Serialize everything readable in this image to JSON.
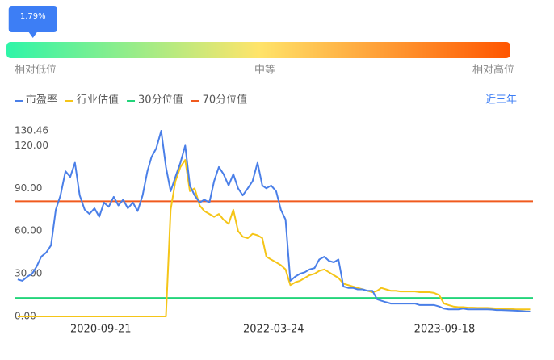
{
  "percentile_bar": {
    "marker": {
      "value": 1.79,
      "label": "1.79%"
    },
    "low_label": "相对低位",
    "mid_label": "中等",
    "high_label": "相对高位"
  },
  "range_selector": "近三年",
  "chart_data": {
    "type": "line",
    "x": [
      "2020-01-01",
      "2020-01-16",
      "2020-02-01",
      "2020-02-16",
      "2020-03-01",
      "2020-03-16",
      "2020-04-01",
      "2020-04-16",
      "2020-05-01",
      "2020-05-16",
      "2020-06-01",
      "2020-06-16",
      "2020-07-01",
      "2020-07-16",
      "2020-08-01",
      "2020-08-16",
      "2020-09-01",
      "2020-09-16",
      "2020-10-01",
      "2020-10-16",
      "2020-11-01",
      "2020-11-16",
      "2020-12-01",
      "2020-12-16",
      "2021-01-01",
      "2021-01-16",
      "2021-02-01",
      "2021-02-16",
      "2021-03-01",
      "2021-03-16",
      "2021-04-01",
      "2021-04-16",
      "2021-05-01",
      "2021-05-16",
      "2021-06-01",
      "2021-06-16",
      "2021-07-01",
      "2021-07-16",
      "2021-08-01",
      "2021-08-16",
      "2021-09-01",
      "2021-09-16",
      "2021-10-01",
      "2021-10-16",
      "2021-11-01",
      "2021-11-16",
      "2021-12-01",
      "2021-12-16",
      "2022-01-01",
      "2022-01-16",
      "2022-02-01",
      "2022-02-16",
      "2022-03-01",
      "2022-03-16",
      "2022-04-01",
      "2022-04-16",
      "2022-05-01",
      "2022-05-16",
      "2022-06-01",
      "2022-06-16",
      "2022-07-01",
      "2022-07-16",
      "2022-08-01",
      "2022-08-16",
      "2022-09-01",
      "2022-09-16",
      "2022-10-01",
      "2022-10-16",
      "2022-11-01",
      "2022-11-16",
      "2022-12-01",
      "2022-12-16",
      "2023-01-01",
      "2023-01-16",
      "2023-02-01",
      "2023-02-16",
      "2023-03-01",
      "2023-03-16",
      "2023-04-01",
      "2023-04-16",
      "2023-05-01",
      "2023-05-16",
      "2023-06-01",
      "2023-06-16",
      "2023-07-01",
      "2023-07-16",
      "2023-08-01",
      "2023-08-16",
      "2023-09-01",
      "2023-09-16",
      "2023-10-01",
      "2023-10-16",
      "2023-11-01",
      "2023-11-16",
      "2023-12-01",
      "2023-12-16",
      "2024-01-01",
      "2024-01-16",
      "2024-02-01",
      "2024-02-16",
      "2024-03-01",
      "2024-03-16",
      "2024-04-01",
      "2024-04-16",
      "2024-05-01",
      "2024-05-16",
      "2024-06-01",
      "2024-06-16"
    ],
    "xlim": [
      "2019-12-22",
      "2024-06-25"
    ],
    "xticks": [
      "2020-09-21",
      "2022-03-24",
      "2023-09-18"
    ],
    "ylim": [
      0,
      130.46
    ],
    "yticks": [
      {
        "value": 0,
        "label": "0.00"
      },
      {
        "value": 30,
        "label": "30.00"
      },
      {
        "value": 60,
        "label": "60.00"
      },
      {
        "value": 90,
        "label": "90.00"
      },
      {
        "value": 120,
        "label": "120.00"
      },
      {
        "value": 130.46,
        "label": "130.46"
      }
    ],
    "series": [
      {
        "name": "市盈率",
        "color": "#4a7fe8",
        "values": [
          26,
          25,
          28,
          30,
          35,
          42,
          45,
          50,
          75,
          85,
          102,
          98,
          108,
          85,
          75,
          72,
          76,
          70,
          80,
          77,
          84,
          78,
          82,
          76,
          80,
          74,
          85,
          102,
          112,
          118,
          130.46,
          105,
          88,
          98,
          108,
          120,
          92,
          85,
          80,
          82,
          80,
          95,
          105,
          100,
          92,
          100,
          90,
          85,
          90,
          95,
          108,
          92,
          90,
          92,
          88,
          75,
          68,
          25,
          28,
          30,
          31,
          33,
          34,
          40,
          42,
          39,
          38,
          40,
          21,
          20,
          20,
          19,
          19,
          18,
          18,
          12,
          11,
          10,
          9,
          9,
          9,
          9,
          9,
          9,
          8,
          8,
          8,
          8,
          7,
          5.5,
          5,
          5,
          5,
          5.5,
          5,
          5,
          5,
          5,
          5,
          4.8,
          4.5,
          4.5,
          4.3,
          4.2,
          4,
          3.8,
          3.5,
          3.4
        ]
      },
      {
        "name": "行业估值",
        "color": "#f5c518",
        "values": [
          0,
          0,
          0,
          0,
          0,
          0,
          0,
          0,
          0,
          0,
          0,
          0,
          0,
          0,
          0,
          0,
          0,
          0,
          0,
          0,
          0,
          0,
          0,
          0,
          0,
          0,
          0,
          0,
          0,
          0,
          0,
          0,
          75,
          95,
          105,
          110,
          88,
          90,
          78,
          74,
          72,
          70,
          72,
          68,
          65,
          75,
          60,
          56,
          55,
          58,
          57,
          55,
          42,
          40,
          38,
          36,
          33,
          22,
          24,
          25,
          27,
          29,
          30,
          32,
          33,
          31,
          29,
          27,
          23,
          22,
          21,
          20,
          19,
          18,
          17,
          18,
          20,
          19,
          18,
          18,
          17.5,
          17.5,
          17.5,
          17.5,
          17,
          17,
          17,
          16.5,
          15,
          9,
          8,
          7,
          6.5,
          6.5,
          6.2,
          6.2,
          6,
          6,
          6,
          5.8,
          5.6,
          5.5,
          5.3,
          5.2,
          5,
          5,
          5,
          5
        ]
      },
      {
        "name": "30分位值",
        "color": "#22d47a",
        "value": 13.0
      },
      {
        "name": "70分位值",
        "color": "#f05a1e",
        "value": 80.9
      }
    ]
  }
}
